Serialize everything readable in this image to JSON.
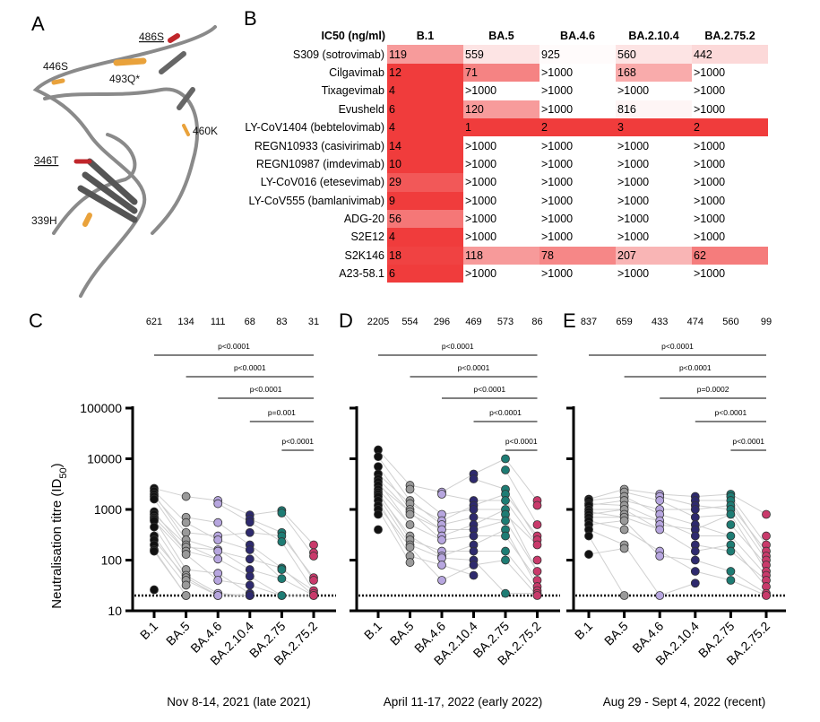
{
  "panel_labels": {
    "a": "A",
    "b": "B",
    "c": "C",
    "d": "D",
    "e": "E"
  },
  "structure": {
    "residue_labels": [
      "486S",
      "446S",
      "493Q*",
      "460K",
      "346T",
      "339H"
    ],
    "colors": {
      "ribbon": "#8a8a8a",
      "red": "#c0262b",
      "orange": "#e9a23b"
    }
  },
  "table": {
    "header": [
      "IC50 (ng/ml)",
      "B.1",
      "BA.5",
      "BA.4.6",
      "BA.2.10.4",
      "BA.2.75.2"
    ],
    "rows": [
      {
        "name": "S309 (sotrovimab)",
        "values": [
          "119",
          "559",
          "925",
          "560",
          "442"
        ]
      },
      {
        "name": "Cilgavimab",
        "values": [
          "12",
          "71",
          ">1000",
          "168",
          ">1000"
        ]
      },
      {
        "name": "Tixagevimab",
        "values": [
          "4",
          ">1000",
          ">1000",
          ">1000",
          ">1000"
        ]
      },
      {
        "name": "Evusheld",
        "values": [
          "6",
          "120",
          ">1000",
          "816",
          ">1000"
        ]
      },
      {
        "name": "LY-CoV1404 (bebtelovimab)",
        "values": [
          "4",
          "1",
          "2",
          "3",
          "2"
        ]
      },
      {
        "name": "REGN10933 (casivirimab)",
        "values": [
          "14",
          ">1000",
          ">1000",
          ">1000",
          ">1000"
        ]
      },
      {
        "name": "REGN10987 (imdevimab)",
        "values": [
          "10",
          ">1000",
          ">1000",
          ">1000",
          ">1000"
        ]
      },
      {
        "name": "LY-CoV016 (etesevimab)",
        "values": [
          "29",
          ">1000",
          ">1000",
          ">1000",
          ">1000"
        ]
      },
      {
        "name": "LY-CoV555 (bamlanivimab)",
        "values": [
          "9",
          ">1000",
          ">1000",
          ">1000",
          ">1000"
        ]
      },
      {
        "name": "ADG-20",
        "values": [
          "56",
          ">1000",
          ">1000",
          ">1000",
          ">1000"
        ]
      },
      {
        "name": "S2E12",
        "values": [
          "4",
          ">1000",
          ">1000",
          ">1000",
          ">1000"
        ]
      },
      {
        "name": "S2K146",
        "values": [
          "18",
          "118",
          "78",
          "207",
          "62"
        ]
      },
      {
        "name": "A23-58.1",
        "values": [
          "6",
          ">1000",
          ">1000",
          ">1000",
          ">1000"
        ]
      }
    ],
    "heat_color": "#f03c3c"
  },
  "chart_data": [
    {
      "type": "scatter",
      "panel": "C",
      "caption": "Nov 8-14, 2021 (late 2021)",
      "ylabel": "Neutralisation titre (ID50)",
      "yscale": "log",
      "ylim": [
        10,
        100000
      ],
      "yticks": [
        "10",
        "100",
        "1000",
        "10000",
        "100000"
      ],
      "detection_limit": 20,
      "categories": [
        "B.1",
        "BA.5",
        "BA.4.6",
        "BA.2.10.4",
        "BA.2.75",
        "BA.2.75.2"
      ],
      "geomeans": [
        "621",
        "134",
        "111",
        "68",
        "83",
        "31"
      ],
      "comparisons": [
        {
          "from": "B.1",
          "to": "BA.2.75.2",
          "p": "p<0.0001"
        },
        {
          "from": "BA.5",
          "to": "BA.2.75.2",
          "p": "p<0.0001"
        },
        {
          "from": "BA.4.6",
          "to": "BA.2.75.2",
          "p": "p<0.0001"
        },
        {
          "from": "BA.2.10.4",
          "to": "BA.2.75.2",
          "p": "p=0.001"
        },
        {
          "from": "BA.2.75",
          "to": "BA.2.75.2",
          "p": "p<0.0001"
        }
      ],
      "values": [
        [
          2600,
          2300,
          2000,
          1800,
          1600,
          900,
          800,
          700,
          650,
          600,
          450,
          300,
          250,
          200,
          160,
          150,
          26
        ],
        [
          1800,
          700,
          550,
          350,
          250,
          200,
          180,
          150,
          130,
          65,
          50,
          45,
          40,
          32,
          20,
          20
        ],
        [
          1500,
          1300,
          550,
          300,
          250,
          160,
          150,
          105,
          55,
          40,
          22,
          20,
          20
        ],
        [
          780,
          650,
          560,
          350,
          200,
          160,
          105,
          65,
          48,
          32,
          22,
          20,
          20,
          20
        ],
        [
          950,
          850,
          350,
          300,
          230,
          70,
          65,
          43,
          20,
          20
        ],
        [
          200,
          140,
          120,
          45,
          40,
          25,
          22,
          20,
          20
        ]
      ]
    },
    {
      "type": "scatter",
      "panel": "D",
      "caption": "April 11-17, 2022 (early 2022)",
      "yscale": "log",
      "ylim": [
        10,
        100000
      ],
      "detection_limit": 20,
      "categories": [
        "B.1",
        "BA.5",
        "BA.4.6",
        "BA.2.10.4",
        "BA.2.75",
        "BA.2.75.2"
      ],
      "geomeans": [
        "2205",
        "554",
        "296",
        "469",
        "573",
        "86"
      ],
      "comparisons": [
        {
          "from": "B.1",
          "to": "BA.2.75.2",
          "p": "p<0.0001"
        },
        {
          "from": "BA.5",
          "to": "BA.2.75.2",
          "p": "p<0.0001"
        },
        {
          "from": "BA.4.6",
          "to": "BA.2.75.2",
          "p": "p<0.0001"
        },
        {
          "from": "BA.2.10.4",
          "to": "BA.2.75.2",
          "p": "p<0.0001"
        },
        {
          "from": "BA.2.75",
          "to": "BA.2.75.2",
          "p": "p<0.0001"
        }
      ],
      "values": [
        [
          15000,
          11000,
          7000,
          5000,
          4000,
          3500,
          3000,
          2500,
          2200,
          2000,
          1800,
          1500,
          1200,
          1000,
          800,
          400
        ],
        [
          3000,
          2500,
          1500,
          1300,
          1000,
          900,
          800,
          500,
          300,
          250,
          200,
          180,
          120,
          90
        ],
        [
          2200,
          2000,
          800,
          600,
          500,
          400,
          300,
          250,
          150,
          120,
          110,
          80,
          40
        ],
        [
          5000,
          4000,
          1500,
          1200,
          1000,
          700,
          500,
          400,
          300,
          200,
          150,
          100,
          80,
          50
        ],
        [
          10000,
          6000,
          2500,
          2000,
          1500,
          1000,
          800,
          600,
          400,
          300,
          150,
          100,
          22
        ],
        [
          1500,
          1200,
          500,
          300,
          250,
          200,
          100,
          60,
          40,
          30,
          25,
          22,
          20
        ]
      ]
    },
    {
      "type": "scatter",
      "panel": "E",
      "caption": "Aug 29 - Sept 4, 2022 (recent)",
      "yscale": "log",
      "ylim": [
        10,
        100000
      ],
      "detection_limit": 20,
      "categories": [
        "B.1",
        "BA.5",
        "BA.4.6",
        "BA.2.10.4",
        "BA.2.75",
        "BA.2.75.2"
      ],
      "geomeans": [
        "837",
        "659",
        "433",
        "474",
        "560",
        "99"
      ],
      "comparisons": [
        {
          "from": "B.1",
          "to": "BA.2.75.2",
          "p": "p<0.0001"
        },
        {
          "from": "BA.5",
          "to": "BA.2.75.2",
          "p": "p<0.0001"
        },
        {
          "from": "BA.4.6",
          "to": "BA.2.75.2",
          "p": "p=0.0002"
        },
        {
          "from": "BA.2.10.4",
          "to": "BA.2.75.2",
          "p": "p<0.0001"
        },
        {
          "from": "BA.2.75",
          "to": "BA.2.75.2",
          "p": "p<0.0001"
        }
      ],
      "values": [
        [
          1600,
          1500,
          1300,
          1200,
          1000,
          900,
          800,
          700,
          600,
          500,
          400,
          300,
          130
        ],
        [
          2500,
          2200,
          1800,
          1500,
          1200,
          1000,
          800,
          700,
          600,
          400,
          200,
          170,
          20
        ],
        [
          2000,
          1800,
          1500,
          1000,
          800,
          600,
          500,
          400,
          150,
          120,
          20
        ],
        [
          1800,
          1500,
          1200,
          1000,
          700,
          500,
          400,
          300,
          200,
          150,
          100,
          60,
          35
        ],
        [
          2000,
          1800,
          1500,
          1200,
          1000,
          800,
          500,
          300,
          200,
          150,
          60,
          40
        ],
        [
          800,
          300,
          200,
          150,
          120,
          100,
          80,
          60,
          50,
          40,
          30,
          22,
          20
        ]
      ]
    }
  ],
  "series_colors": [
    "#111111",
    "#9a9a9a",
    "#b7a6df",
    "#2e2a6e",
    "#1e7c74",
    "#c93a6b"
  ]
}
